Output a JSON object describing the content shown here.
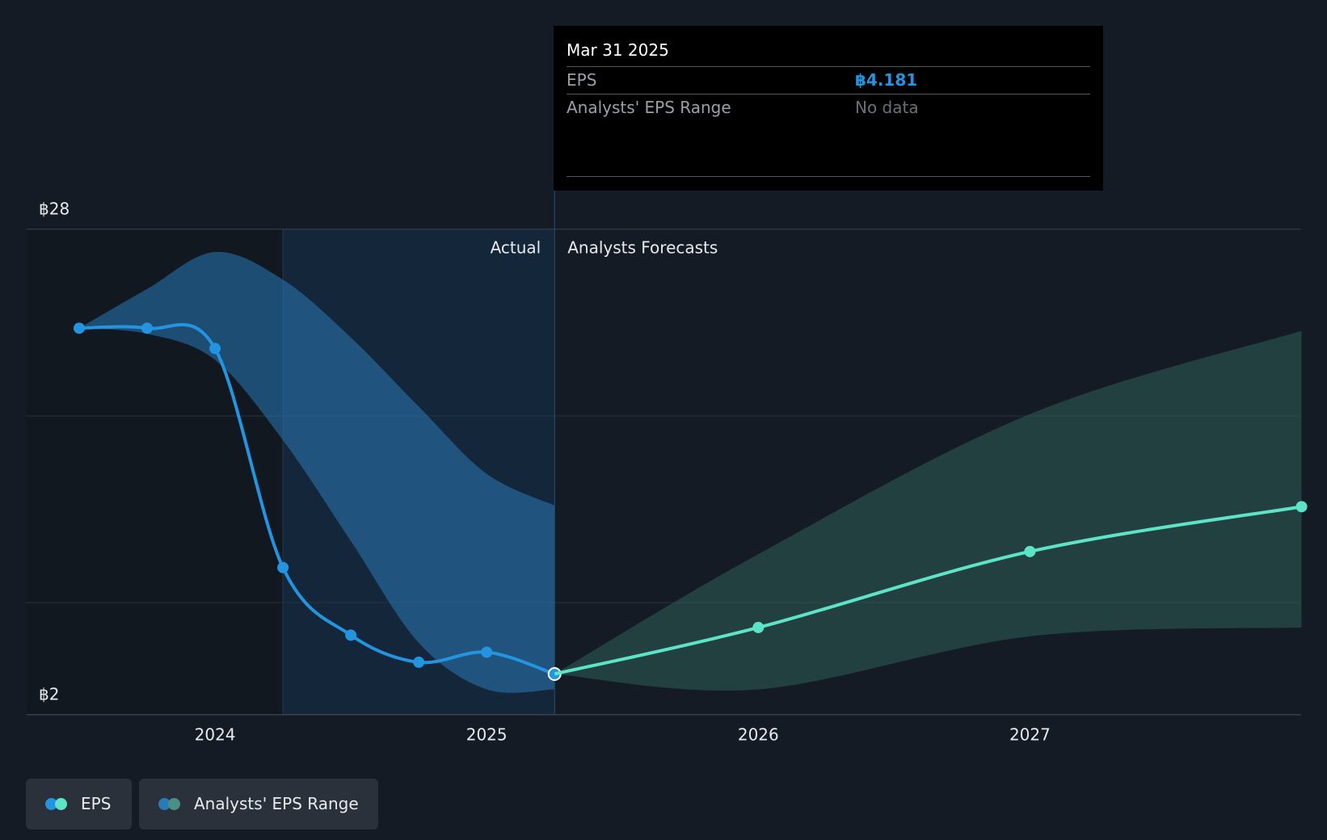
{
  "chart_data": {
    "type": "line",
    "x": [
      2023.5,
      2023.75,
      2024.0,
      2024.25,
      2024.5,
      2024.75,
      2025.0,
      2025.25
    ],
    "series": [
      {
        "name": "EPS",
        "color": "#2394df",
        "values": [
          22.7,
          22.7,
          21.61,
          9.88,
          6.26,
          4.81,
          5.35,
          4.181
        ]
      },
      {
        "color": "#5de4c7",
        "x": [
          2025.25,
          2026.0,
          2027.0,
          2028.0
        ],
        "values": [
          4.181,
          6.67,
          10.74,
          13.14
        ]
      }
    ],
    "range": {
      "name": "Analysts' EPS Range",
      "colors": [
        "#2a7ab8",
        "#2f5e5a"
      ],
      "x": [
        2023.5,
        2023.75,
        2024.0,
        2024.25,
        2024.5,
        2024.75,
        2025.0,
        2025.25,
        2025.25,
        2026.0,
        2027.0,
        2028.0
      ],
      "low": [
        22.7,
        22.4,
        21.0,
        16.7,
        11.3,
        5.85,
        3.36,
        3.36,
        4.181,
        3.36,
        6.2,
        6.67
      ],
      "high": [
        22.7,
        24.8,
        26.78,
        25.3,
        22.2,
        18.5,
        14.9,
        13.2,
        4.181,
        10.6,
        18.1,
        22.56
      ]
    },
    "divider_x": 2025.25,
    "highlight_x": [
      2024.25,
      2025.25
    ],
    "xlim": [
      2023.305,
      2027.997
    ],
    "xticks": [
      2024,
      2025,
      2026,
      2027
    ],
    "ylim": [
      2,
      28
    ],
    "yticks": [
      {
        "value": 2,
        "label": "฿2"
      },
      {
        "value": 28,
        "label": "฿28"
      }
    ],
    "gridlines": [
      8,
      18
    ],
    "actual_label": "Actual",
    "forecast_label": "Analysts Forecasts",
    "tooltip": {
      "date": "Mar 31 2025",
      "rows": [
        [
          "EPS",
          "฿4.181"
        ],
        [
          "Analysts' EPS Range",
          "No data"
        ]
      ]
    }
  }
}
